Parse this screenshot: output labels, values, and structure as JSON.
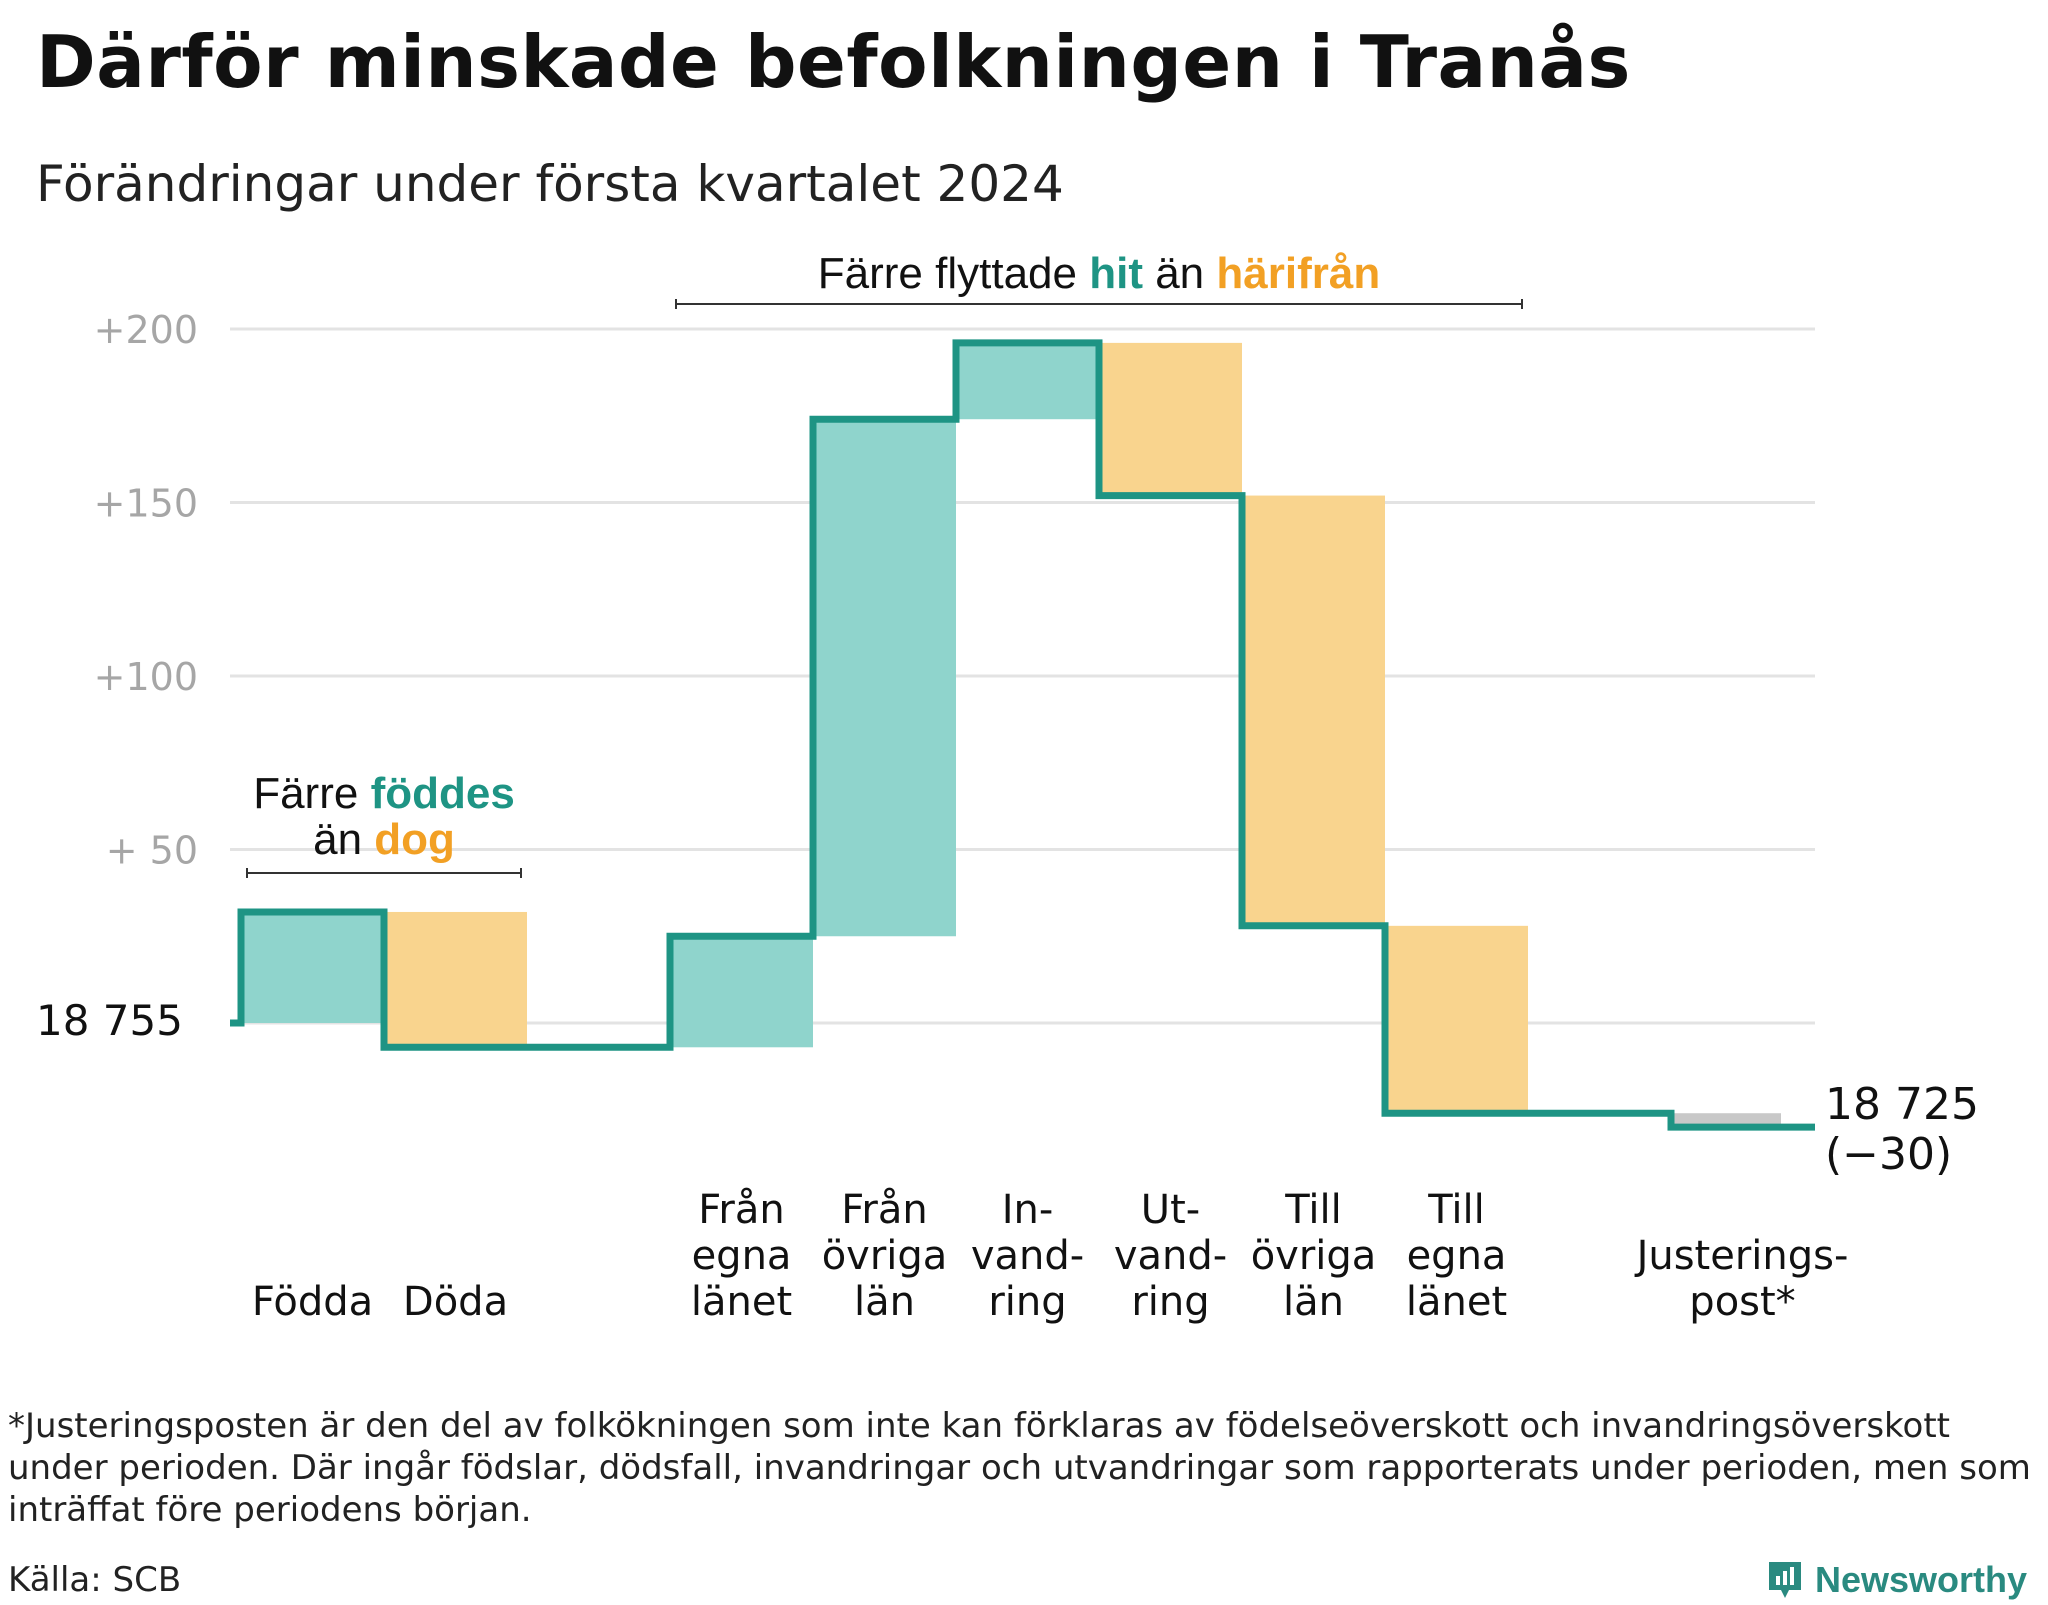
{
  "title": "Därför minskade befolkningen i Tranås",
  "subtitle": "Förändringar under första kvartalet 2024",
  "colors": {
    "increase_fill": "#8fd4cc",
    "decrease_fill": "#f9d48e",
    "adjustment_fill": "#c8c8c8",
    "line": "#1e9484",
    "teal_text": "#1e9484",
    "orange_text": "#f2a024",
    "grid": "#e3e3e3",
    "tick_text": "#a6a6a6"
  },
  "chart_data": {
    "type": "waterfall",
    "start_value": 18755,
    "start_label": "18  755",
    "end_value": 18725,
    "end_label": "18 725",
    "end_change_label": "(−30)",
    "yticks": [
      {
        "value": 200,
        "label": "+200"
      },
      {
        "value": 150,
        "label": "+150"
      },
      {
        "value": 100,
        "label": "+100"
      },
      {
        "value": 50,
        "label": "+  50"
      }
    ],
    "ylim": [
      -35,
      210
    ],
    "grid": true,
    "steps": [
      {
        "label": [
          "Födda"
        ],
        "delta": 32,
        "kind": "increase"
      },
      {
        "label": [
          "Döda"
        ],
        "delta": -39,
        "kind": "decrease"
      },
      {
        "label": [],
        "delta": 0,
        "kind": "gap"
      },
      {
        "label": [
          "Från",
          "egna",
          "länet"
        ],
        "delta": 32,
        "kind": "increase"
      },
      {
        "label": [
          "Från",
          "övriga",
          "län"
        ],
        "delta": 149,
        "kind": "increase"
      },
      {
        "label": [
          "In-",
          "vand-",
          "ring"
        ],
        "delta": 22,
        "kind": "increase"
      },
      {
        "label": [
          "Ut-",
          "vand-",
          "ring"
        ],
        "delta": -44,
        "kind": "decrease"
      },
      {
        "label": [
          "Till",
          "övriga",
          "län"
        ],
        "delta": -124,
        "kind": "decrease"
      },
      {
        "label": [
          "Till",
          "egna",
          "länet"
        ],
        "delta": -54,
        "kind": "decrease"
      },
      {
        "label": [],
        "delta": 0,
        "kind": "gap"
      },
      {
        "label": [
          "Justerings-",
          "post*"
        ],
        "delta": -4,
        "kind": "adjustment"
      }
    ],
    "annotations": [
      {
        "text_parts": [
          {
            "text": "Färre flyttade ",
            "style": "plain"
          },
          {
            "text": "hit",
            "style": "teal"
          },
          {
            "text": " än ",
            "style": "plain"
          },
          {
            "text": "härifrån",
            "style": "orange"
          }
        ],
        "span": [
          3,
          8
        ]
      },
      {
        "text_parts": [
          {
            "text": "Färre ",
            "style": "plain"
          },
          {
            "text": "föddes",
            "style": "teal"
          }
        ],
        "second_line": [
          {
            "text": "än ",
            "style": "plain"
          },
          {
            "text": "dog",
            "style": "orange"
          }
        ],
        "span": [
          0,
          1
        ]
      }
    ]
  },
  "footnote": "*Justeringsposten är den del av folkökningen som inte kan förklaras av födelseöverskott och invandringsöverskott under perioden. Där ingår födslar, dödsfall, invandringar och utvandringar som rapporterats under perioden, men som inträffat före periodens början.",
  "source": "Källa: SCB",
  "logo_text": "Newsworthy"
}
